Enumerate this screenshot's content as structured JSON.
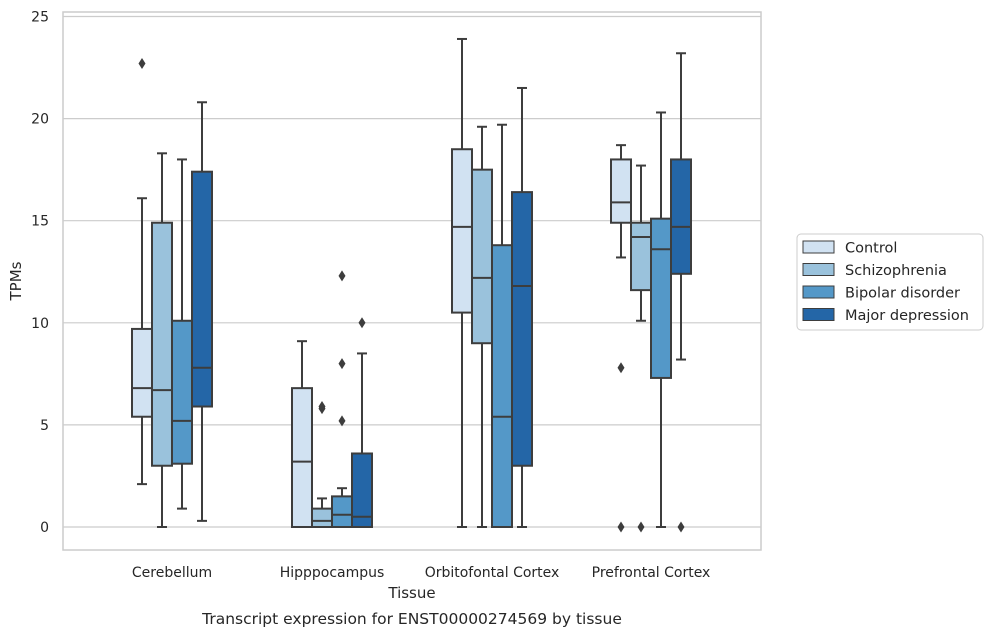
{
  "chart_data": {
    "type": "boxplot",
    "title": "",
    "caption": "Transcript expression for ENST00000274569 by tissue",
    "xlabel": "Tissue",
    "ylabel": "TPMs",
    "ylim": [
      -1.1,
      25.3
    ],
    "yticks": [
      0,
      5,
      10,
      15,
      20,
      25
    ],
    "grid": "horizontal",
    "legend_position": "right",
    "categories": [
      "Cerebellum",
      "Hipppocampus",
      "Orbitofontal Cortex",
      "Prefrontal Cortex"
    ],
    "series": [
      {
        "name": "Control",
        "color": "#d1e2f2",
        "boxes": [
          {
            "whisker_low": 2.1,
            "q1": 5.4,
            "median": 6.8,
            "q3": 9.7,
            "whisker_high": 16.1,
            "outliers": [
              22.7
            ]
          },
          {
            "whisker_low": 0,
            "q1": 0,
            "median": 3.2,
            "q3": 6.8,
            "whisker_high": 9.1,
            "outliers": []
          },
          {
            "whisker_low": 0,
            "q1": 10.5,
            "median": 14.7,
            "q3": 18.5,
            "whisker_high": 23.9,
            "outliers": []
          },
          {
            "whisker_low": 13.2,
            "q1": 14.9,
            "median": 15.9,
            "q3": 18.0,
            "whisker_high": 18.7,
            "outliers": [
              7.8,
              0
            ]
          }
        ]
      },
      {
        "name": "Schizophrenia",
        "color": "#9ac2dc",
        "boxes": [
          {
            "whisker_low": 0,
            "q1": 3.0,
            "median": 6.7,
            "q3": 14.9,
            "whisker_high": 18.3,
            "outliers": []
          },
          {
            "whisker_low": 0,
            "q1": 0,
            "median": 0.3,
            "q3": 0.9,
            "whisker_high": 1.4,
            "outliers": [
              5.8,
              5.9
            ]
          },
          {
            "whisker_low": 0,
            "q1": 9.0,
            "median": 12.2,
            "q3": 17.5,
            "whisker_high": 19.6,
            "outliers": []
          },
          {
            "whisker_low": 10.1,
            "q1": 11.6,
            "median": 14.2,
            "q3": 14.9,
            "whisker_high": 17.7,
            "outliers": [
              0
            ]
          }
        ]
      },
      {
        "name": "Bipolar disorder",
        "color": "#5498c8",
        "boxes": [
          {
            "whisker_low": 0.9,
            "q1": 3.1,
            "median": 5.2,
            "q3": 10.1,
            "whisker_high": 18.0,
            "outliers": []
          },
          {
            "whisker_low": 0,
            "q1": 0,
            "median": 0.6,
            "q3": 1.5,
            "whisker_high": 1.9,
            "outliers": [
              12.3,
              8.0,
              5.2
            ]
          },
          {
            "whisker_low": 0,
            "q1": 0,
            "median": 5.4,
            "q3": 13.8,
            "whisker_high": 19.7,
            "outliers": []
          },
          {
            "whisker_low": 0,
            "q1": 7.3,
            "median": 13.6,
            "q3": 15.1,
            "whisker_high": 20.3,
            "outliers": []
          }
        ]
      },
      {
        "name": "Major depression",
        "color": "#2466a7",
        "boxes": [
          {
            "whisker_low": 0.3,
            "q1": 5.9,
            "median": 7.8,
            "q3": 17.4,
            "whisker_high": 20.8,
            "outliers": []
          },
          {
            "whisker_low": 0,
            "q1": 0,
            "median": 0.5,
            "q3": 3.6,
            "whisker_high": 8.5,
            "outliers": [
              10.0
            ]
          },
          {
            "whisker_low": 0,
            "q1": 3.0,
            "median": 11.8,
            "q3": 16.4,
            "whisker_high": 21.5,
            "outliers": []
          },
          {
            "whisker_low": 8.2,
            "q1": 12.4,
            "median": 14.7,
            "q3": 18.0,
            "whisker_high": 23.2,
            "outliers": [
              0
            ]
          }
        ]
      }
    ]
  }
}
